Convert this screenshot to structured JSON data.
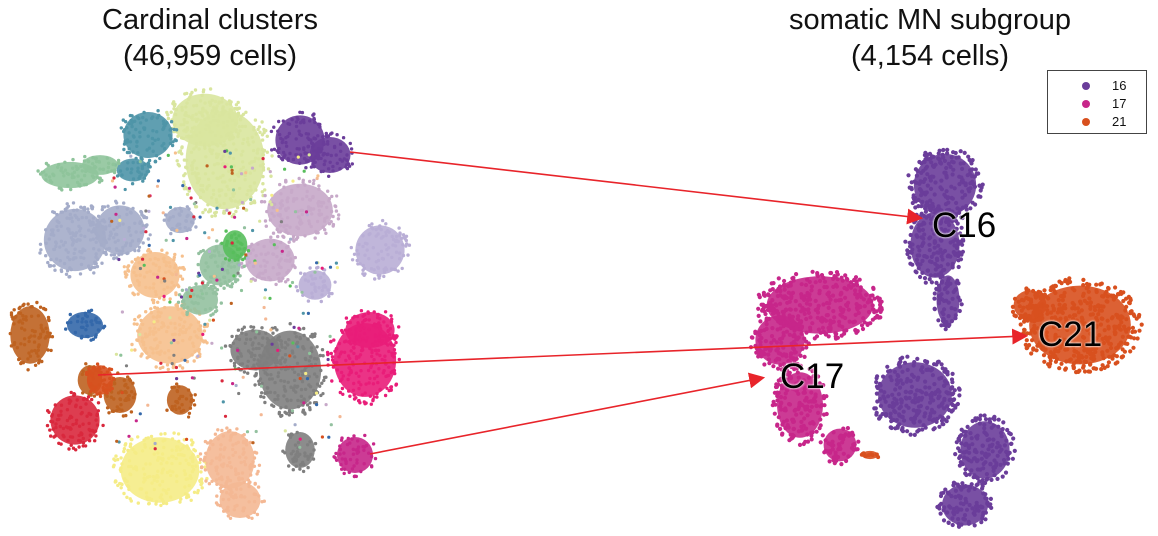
{
  "titles": {
    "left_line1": "Cardinal clusters",
    "left_line2": "(46,959 cells)",
    "right_line1": "somatic MN subgroup",
    "right_line2": "(4,154 cells)"
  },
  "chart_data": [
    {
      "type": "scatter",
      "title": "Cardinal clusters (46,959 cells)",
      "n_cells": 46959,
      "axes": "none",
      "grid": false,
      "highlighted_clusters": [
        "16",
        "17",
        "21"
      ]
    },
    {
      "type": "scatter",
      "title": "somatic MN subgroup (4,154 cells)",
      "n_cells": 4154,
      "axes": "none",
      "grid": false,
      "legend_position": "top-right",
      "series": [
        {
          "name": "16",
          "color": "#6a3d9a",
          "label": "C16"
        },
        {
          "name": "17",
          "color": "#c7268a",
          "label": "C17"
        },
        {
          "name": "21",
          "color": "#d8501e",
          "label": "C21"
        }
      ],
      "annotations": [
        "C16",
        "C17",
        "C21"
      ]
    }
  ],
  "legend": {
    "items": [
      {
        "label": "16",
        "color": "#6a3d9a"
      },
      {
        "label": "17",
        "color": "#c7268a"
      },
      {
        "label": "21",
        "color": "#d8501e"
      }
    ]
  },
  "cluster_labels": {
    "c16": "C16",
    "c17": "C17",
    "c21": "C21"
  },
  "arrow_color": "#e8242a",
  "palette": [
    "#d9e59e",
    "#4f95a8",
    "#8fc49b",
    "#a4acc9",
    "#3468aa",
    "#f6c08d",
    "#7f7f7f",
    "#e91d79",
    "#be6220",
    "#d9283d",
    "#f5ec86",
    "#f4b894",
    "#c7a9c9",
    "#b9aed6",
    "#94c1a0",
    "#58be5c",
    "#6a3d9a",
    "#c7268a",
    "#d8501e"
  ]
}
